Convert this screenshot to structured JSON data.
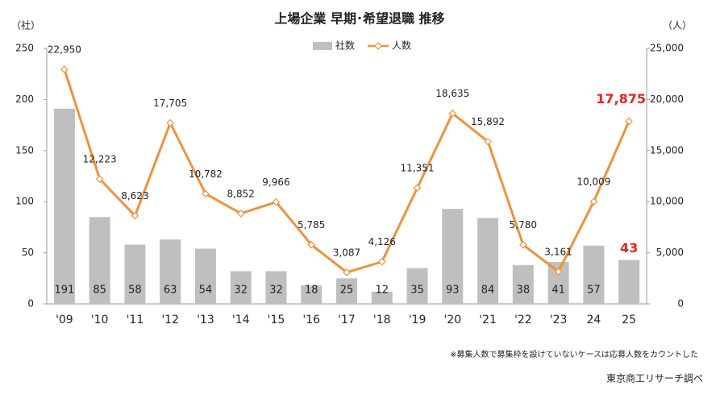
{
  "chart_data": {
    "type": "bar-line",
    "title": "上場企業 早期･希望退職 推移",
    "y_label": "（社）",
    "y2_label": "（人）",
    "categories": [
      "'09",
      "'10",
      "'11",
      "'12",
      "'13",
      "'14",
      "'15",
      "'16",
      "'17",
      "'18",
      "'19",
      "'20",
      "'21",
      "'22",
      "'23",
      "24",
      "25"
    ],
    "series": [
      {
        "name": "社数",
        "type": "bar",
        "color": "#bfbfbf",
        "values": [
          191,
          85,
          58,
          63,
          54,
          32,
          32,
          18,
          25,
          12,
          35,
          93,
          84,
          38,
          41,
          57,
          43
        ]
      },
      {
        "name": "人数",
        "type": "line",
        "axis": "y2",
        "color": "#f0923c",
        "values": [
          22950,
          12223,
          8623,
          17705,
          10782,
          8852,
          9966,
          5785,
          3087,
          4126,
          11351,
          18635,
          15892,
          5780,
          3161,
          10009,
          17875
        ],
        "value_labels": [
          "22,950",
          "12,223",
          "8,623",
          "17,705",
          "10,782",
          "8,852",
          "9,966",
          "5,785",
          "3,087",
          "4,126",
          "11,351",
          "18,635",
          "15,892",
          "5,780",
          "3,161",
          "10,009",
          "17,875"
        ]
      }
    ],
    "ylim": [
      0,
      250
    ],
    "yticks": [
      0,
      50,
      100,
      150,
      200,
      250
    ],
    "y2lim": [
      0,
      25000
    ],
    "y2ticks": [
      0,
      {
        "value": 5000,
        "label": "5,000"
      },
      {
        "value": 10000,
        "label": "10,000"
      },
      {
        "value": 15000,
        "label": "15,000"
      },
      {
        "value": 20000,
        "label": "20,000"
      },
      {
        "value": 25000,
        "label": "25,000"
      }
    ],
    "legend": "top",
    "note": "※募集人数で募集枠を設けていないケースは応募人数をカウントした",
    "source": "東京商工リサーチ調べ"
  }
}
